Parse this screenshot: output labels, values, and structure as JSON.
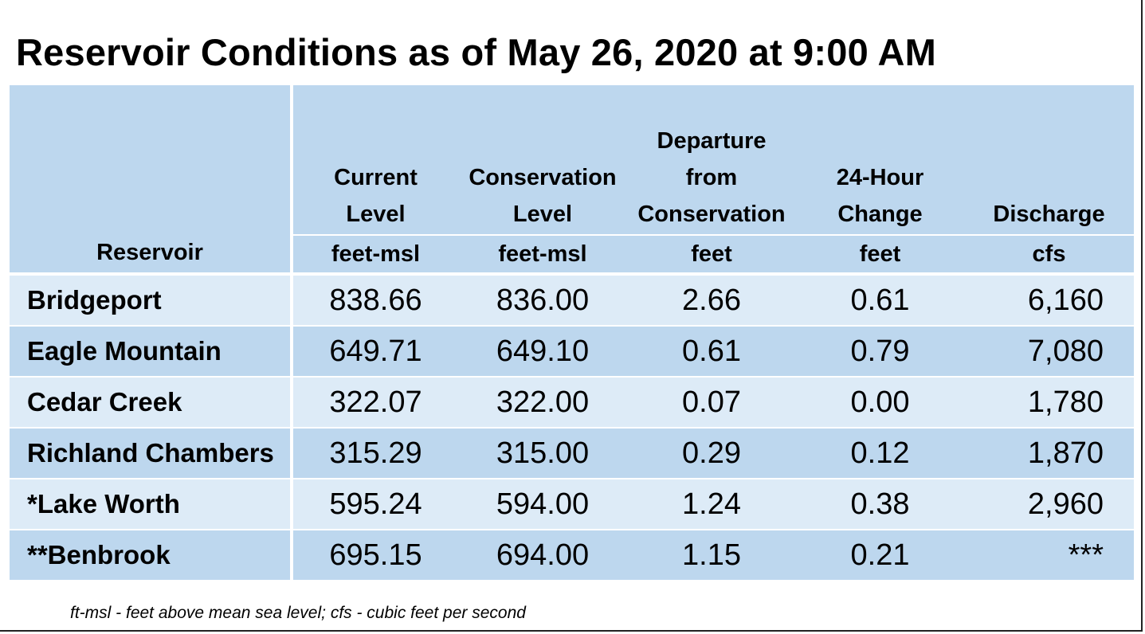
{
  "title": "Reservoir Conditions as of May 26, 2020 at 9:00 AM",
  "table": {
    "headers": [
      {
        "label": [
          "",
          "",
          "",
          "Reservoir"
        ],
        "unit": ""
      },
      {
        "label": [
          "Current",
          "Level"
        ],
        "unit": "feet-msl"
      },
      {
        "label": [
          "Conservation",
          "Level"
        ],
        "unit": "feet-msl"
      },
      {
        "label": [
          "Departure",
          "from",
          "Conservation"
        ],
        "unit": "feet"
      },
      {
        "label": [
          "24-Hour",
          "Change"
        ],
        "unit": "feet"
      },
      {
        "label": [
          "Discharge"
        ],
        "unit": "cfs"
      }
    ],
    "rows": [
      {
        "reservoir": "Bridgeport",
        "current_level": "838.66",
        "conservation_level": "836.00",
        "departure": "2.66",
        "change_24h": "0.61",
        "discharge": "6,160"
      },
      {
        "reservoir": "Eagle Mountain",
        "current_level": "649.71",
        "conservation_level": "649.10",
        "departure": "0.61",
        "change_24h": "0.79",
        "discharge": "7,080"
      },
      {
        "reservoir": "Cedar Creek",
        "current_level": "322.07",
        "conservation_level": "322.00",
        "departure": "0.07",
        "change_24h": "0.00",
        "discharge": "1,780"
      },
      {
        "reservoir": "Richland Chambers",
        "current_level": "315.29",
        "conservation_level": "315.00",
        "departure": "0.29",
        "change_24h": "0.12",
        "discharge": "1,870"
      },
      {
        "reservoir": "*Lake Worth",
        "current_level": "595.24",
        "conservation_level": "594.00",
        "departure": "1.24",
        "change_24h": "0.38",
        "discharge": "2,960"
      },
      {
        "reservoir": "**Benbrook",
        "current_level": "695.15",
        "conservation_level": "694.00",
        "departure": "1.15",
        "change_24h": "0.21",
        "discharge": "***"
      }
    ]
  },
  "footnote": "ft-msl - feet above mean sea level; cfs - cubic feet per second",
  "colors": {
    "header_bg": "#bdd7ee",
    "row_light": "#ddebf7",
    "row_dark": "#bdd7ee",
    "divider": "#ffffff"
  }
}
